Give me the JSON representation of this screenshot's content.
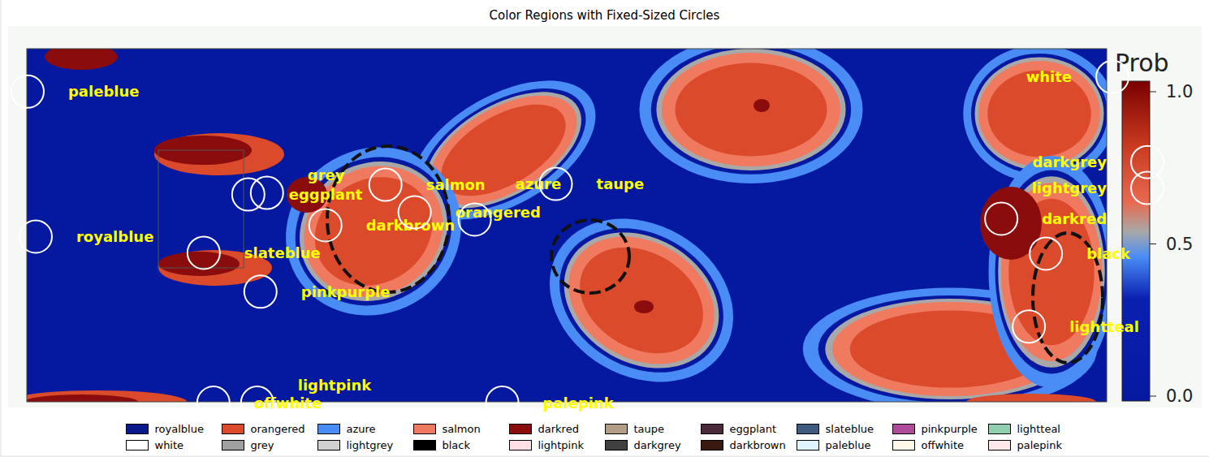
{
  "chart_data": {
    "type": "scatter",
    "title": "Color Regions with Fixed-Sized Circles",
    "xlim": [
      0,
      1489
    ],
    "ylim": [
      0,
      563
    ],
    "tick_labels": false,
    "points": [
      {
        "label": "paleblue",
        "x": 33,
        "y": 113
      },
      {
        "label": "royalblue",
        "x": 43,
        "y": 292
      },
      {
        "label": "eggplant",
        "x": 305,
        "y": 240
      },
      {
        "label": "grey",
        "x": 328,
        "y": 238
      },
      {
        "label": "salmon",
        "x": 474,
        "y": 228
      },
      {
        "label": "darkbrown",
        "x": 400,
        "y": 278
      },
      {
        "label": "orangered",
        "x": 510,
        "y": 262
      },
      {
        "label": "azure",
        "x": 584,
        "y": 271
      },
      {
        "label": "taupe",
        "x": 684,
        "y": 227
      },
      {
        "label": "slateblue",
        "x": 250,
        "y": 312
      },
      {
        "label": "pinkpurple",
        "x": 320,
        "y": 360
      },
      {
        "label": "white",
        "x": 1370,
        "y": 95
      },
      {
        "label": "darkgrey",
        "x": 1413,
        "y": 200
      },
      {
        "label": "lightgrey",
        "x": 1413,
        "y": 232
      },
      {
        "label": "darkred",
        "x": 1233,
        "y": 270
      },
      {
        "label": "black",
        "x": 1288,
        "y": 313
      },
      {
        "label": "lightteal",
        "x": 1267,
        "y": 403
      },
      {
        "label": "offwhite",
        "x": 262,
        "y": 497
      },
      {
        "label": "lightpink",
        "x": 316,
        "y": 497
      },
      {
        "label": "palepink",
        "x": 618,
        "y": 497
      }
    ],
    "regions": [
      {
        "name": "royalblue",
        "color": "#0a1a8c"
      },
      {
        "name": "orangered",
        "color": "#dc4a2c"
      },
      {
        "name": "azure",
        "color": "#4a8cf5"
      },
      {
        "name": "salmon",
        "color": "#f07a60"
      },
      {
        "name": "darkred",
        "color": "#8a0c0c"
      },
      {
        "name": "taupe",
        "color": "#b39c88"
      },
      {
        "name": "eggplant",
        "color": "#4a2a3a"
      },
      {
        "name": "slateblue",
        "color": "#3f5a80"
      },
      {
        "name": "pinkpurple",
        "color": "#b04a9a"
      },
      {
        "name": "lightteal",
        "color": "#90d0b0"
      },
      {
        "name": "white",
        "color": "#ffffff"
      },
      {
        "name": "grey",
        "color": "#a0a0a0"
      },
      {
        "name": "lightgrey",
        "color": "#d0d0d0"
      },
      {
        "name": "black",
        "color": "#000000"
      },
      {
        "name": "lightpink",
        "color": "#ffe0e6"
      },
      {
        "name": "darkgrey",
        "color": "#404040"
      },
      {
        "name": "darkbrown",
        "color": "#3a1a10"
      },
      {
        "name": "paleblue",
        "color": "#e0f4ff"
      },
      {
        "name": "offwhite",
        "color": "#fff8e8"
      },
      {
        "name": "palepink",
        "color": "#ffe8ea"
      }
    ],
    "colorbar": {
      "label": "Prob",
      "range": [
        0,
        1
      ],
      "ticks": [
        {
          "value": 0,
          "label": "0.0"
        },
        {
          "value": 0.5,
          "label": "0.5"
        },
        {
          "value": 1,
          "label": "1.0"
        }
      ]
    }
  }
}
